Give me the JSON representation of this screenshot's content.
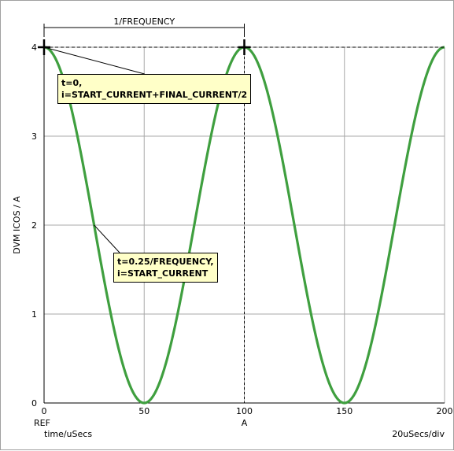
{
  "chart_data": {
    "type": "line",
    "xlabel": "time/uSecs",
    "ylabel": "DVM ICOS / A",
    "xlim": [
      0,
      200
    ],
    "ylim": [
      0,
      4
    ],
    "x_ticks": [
      0,
      50,
      100,
      150,
      200
    ],
    "y_ticks": [
      0,
      1,
      2,
      3,
      4
    ],
    "grid": true,
    "series": [
      {
        "function": "2 + 2*cos(2*pi*t/100)",
        "color": "#3f9f3f",
        "x_start": 0,
        "x_end": 200
      }
    ],
    "dimension_label": "1/FREQUENCY",
    "dimension_range": [
      0,
      100
    ],
    "reference_markers": [
      {
        "x": 0,
        "label": "REF"
      },
      {
        "x": 100,
        "label": "A"
      }
    ],
    "scale_readout": "20uSecs/div",
    "annotations": [
      {
        "line1": "t=0,",
        "line2": "i=START_CURRENT+FINAL_CURRENT/2",
        "target_x": 0,
        "target_y": 4
      },
      {
        "line1": "t=0.25/FREQUENCY,",
        "line2": "i=START_CURRENT",
        "target_x": 25,
        "target_y": 2
      }
    ]
  }
}
